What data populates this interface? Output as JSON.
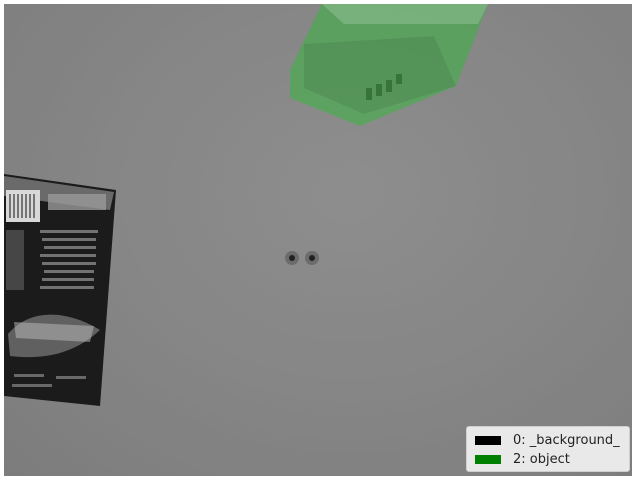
{
  "image": {
    "description_tags": [
      "grayscale-photo",
      "segmentation-overlay"
    ],
    "overlay_color": "#22c32a"
  },
  "legend": {
    "entries": [
      {
        "label": "0: _background_",
        "color": "#000000"
      },
      {
        "label": "2: object",
        "color": "#008000"
      }
    ]
  }
}
